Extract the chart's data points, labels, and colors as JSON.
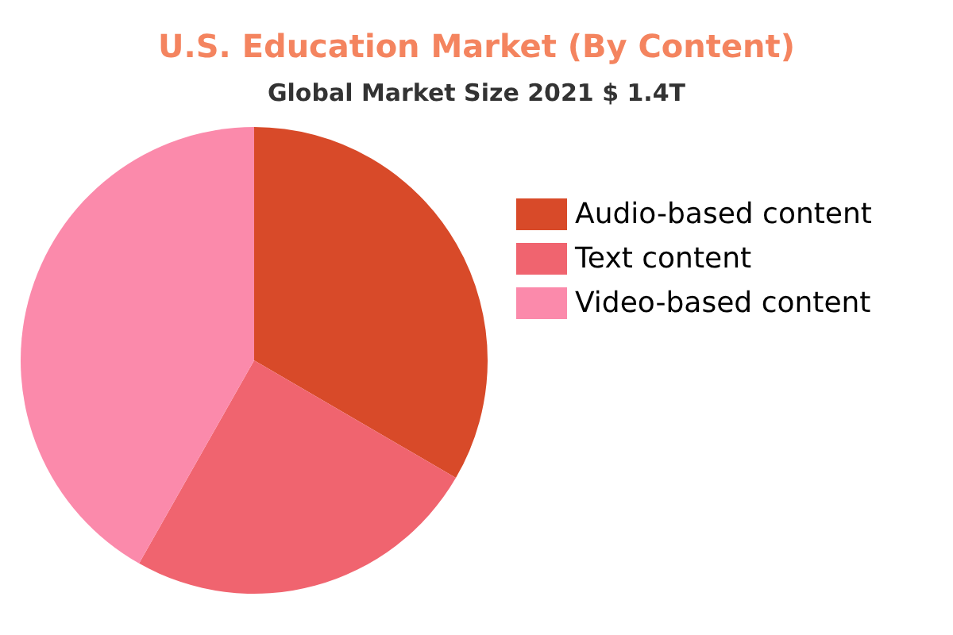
{
  "chart_data": {
    "type": "pie",
    "title": "U.S. Education Market (By Content)",
    "subtitle": "Global Market Size 2021 $ 1.4T",
    "categories": [
      "Audio-based content",
      "Text content",
      "Video-based content"
    ],
    "values": [
      33.4,
      24.8,
      41.8
    ],
    "colors": [
      "#d84a29",
      "#f0646f",
      "#fb8aab"
    ],
    "legend": "right"
  }
}
